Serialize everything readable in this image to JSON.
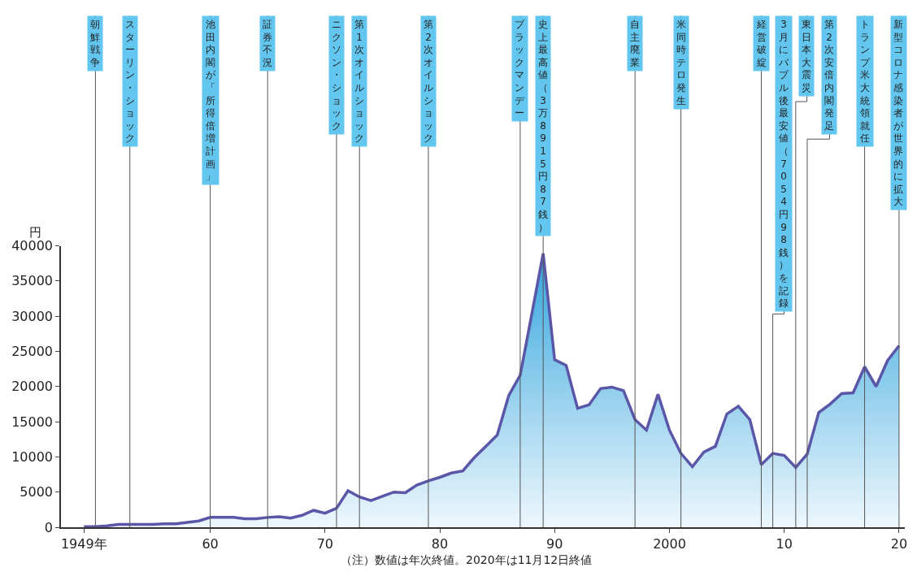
{
  "chart_data": {
    "type": "area",
    "ylabel": "円",
    "x": [
      1949,
      1950,
      1951,
      1952,
      1953,
      1954,
      1955,
      1956,
      1957,
      1958,
      1959,
      1960,
      1961,
      1962,
      1963,
      1964,
      1965,
      1966,
      1967,
      1968,
      1969,
      1970,
      1971,
      1972,
      1973,
      1974,
      1975,
      1976,
      1977,
      1978,
      1979,
      1980,
      1981,
      1982,
      1983,
      1984,
      1985,
      1986,
      1987,
      1988,
      1989,
      1990,
      1991,
      1992,
      1993,
      1994,
      1995,
      1996,
      1997,
      1998,
      1999,
      2000,
      2001,
      2002,
      2003,
      2004,
      2005,
      2006,
      2007,
      2008,
      2009,
      2010,
      2011,
      2012,
      2013,
      2014,
      2015,
      2016,
      2017,
      2018,
      2019,
      2020
    ],
    "series": [
      {
        "color": "#5b57a8",
        "values": [
          100,
          100,
          200,
          400,
          400,
          400,
          400,
          500,
          500,
          700,
          900,
          1400,
          1400,
          1400,
          1200,
          1200,
          1400,
          1500,
          1300,
          1700,
          2400,
          2000,
          2700,
          5200,
          4300,
          3800,
          4400,
          5000,
          4900,
          6000,
          6600,
          7100,
          7700,
          8000,
          9900,
          11500,
          13100,
          18700,
          21600,
          30200,
          38900,
          23800,
          23000,
          16900,
          17400,
          19700,
          19900,
          19400,
          15300,
          13800,
          18900,
          13800,
          10500,
          8600,
          10700,
          11500,
          16100,
          17200,
          15300,
          8900,
          10500,
          10200,
          8500,
          10400,
          16300,
          17500,
          19000,
          19100,
          22800,
          20000,
          23700,
          25800
        ]
      }
    ],
    "xlim": [
      1947,
      2020.5
    ],
    "xticks": [
      {
        "value": 1949,
        "label": "1949年"
      },
      {
        "value": 1960,
        "label": "60"
      },
      {
        "value": 1970,
        "label": "70"
      },
      {
        "value": 1980,
        "label": "80"
      },
      {
        "value": 1990,
        "label": "90"
      },
      {
        "value": 2000,
        "label": "2000"
      },
      {
        "value": 2010,
        "label": "10"
      },
      {
        "value": 2020,
        "label": "20"
      }
    ],
    "ylim": [
      0,
      40000
    ],
    "yticks": [
      0,
      5000,
      10000,
      15000,
      20000,
      25000,
      30000,
      35000,
      40000
    ],
    "marker": "none",
    "line_style": "solid",
    "ref_lines": [
      {
        "axis": "x",
        "value": 1950,
        "label": "朝鮮戦争",
        "color": "#555555"
      },
      {
        "axis": "x",
        "value": 1953,
        "label": "スターリン・ショック",
        "color": "#555555"
      },
      {
        "axis": "x",
        "value": 1960,
        "label": "池田内閣が「所得倍増計画」",
        "color": "#555555"
      },
      {
        "axis": "x",
        "value": 1965,
        "label": "証券不況",
        "color": "#555555"
      },
      {
        "axis": "x",
        "value": 1971,
        "label": "ニクソン・ショック",
        "color": "#555555"
      },
      {
        "axis": "x",
        "value": 1973,
        "label": "第1次オイルショック",
        "color": "#555555"
      },
      {
        "axis": "x",
        "value": 1979,
        "label": "第2次オイルショック",
        "color": "#555555"
      },
      {
        "axis": "x",
        "value": 1987,
        "label": "ブラックマンデー",
        "color": "#555555"
      },
      {
        "axis": "x",
        "value": 1989,
        "label": "史上最高値（3万8915円87銭）",
        "color": "#555555"
      },
      {
        "axis": "x",
        "value": 1997,
        "label": "自主廃業",
        "color": "#555555"
      },
      {
        "axis": "x",
        "value": 2001,
        "label": "米同時テロ発生",
        "color": "#555555"
      },
      {
        "axis": "x",
        "value": 2008,
        "label": "経営破綻",
        "color": "#555555"
      },
      {
        "axis": "x",
        "value": 2009,
        "label": "3月にバブル後最安値（7054円98銭）を記録",
        "color": "#555555"
      },
      {
        "axis": "x",
        "value": 2011,
        "label": "東日本大震災",
        "color": "#555555"
      },
      {
        "axis": "x",
        "value": 2012,
        "label": "第2次安倍内閣発足",
        "color": "#555555"
      },
      {
        "axis": "x",
        "value": 2017,
        "label": "トランプ米大統領就任",
        "color": "#555555"
      },
      {
        "axis": "x",
        "value": 2020,
        "label": "新型コロナ感染者が世界的に拡大",
        "color": "#555555"
      }
    ],
    "annotations": [
      "（注）数値は年次終値。2020年は11月12日終値"
    ]
  }
}
